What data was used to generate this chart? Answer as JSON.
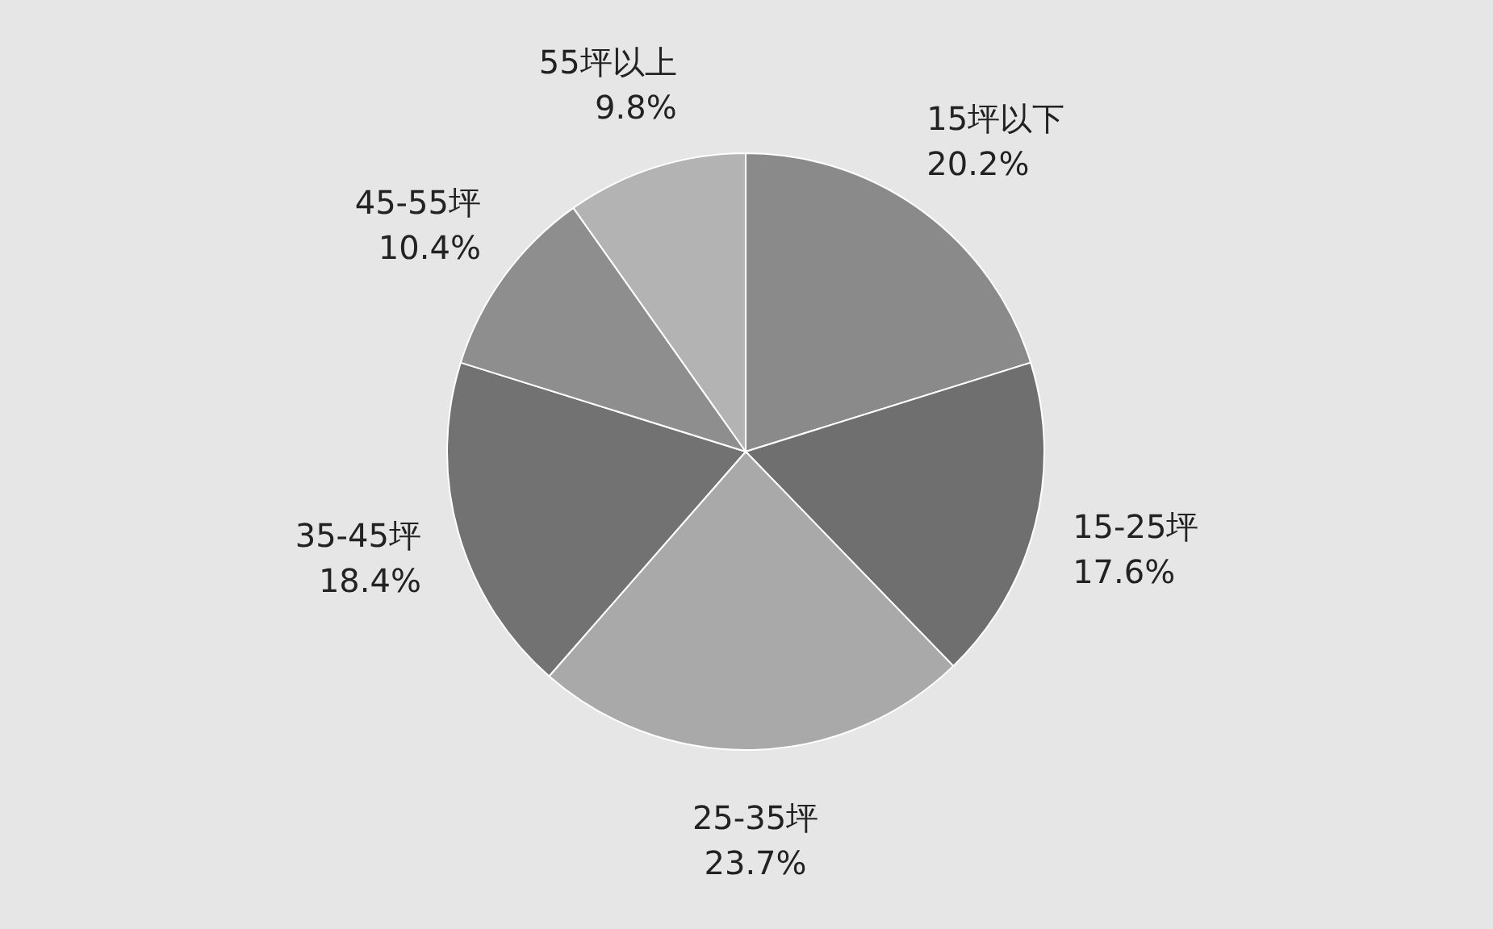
{
  "chart_data": {
    "type": "pie",
    "categories": [
      "15坪以下",
      "15-25坪",
      "25-35坪",
      "35-45坪",
      "45-55坪",
      "55坪以上"
    ],
    "values": [
      20.2,
      17.6,
      23.7,
      18.4,
      10.4,
      9.8
    ],
    "value_labels": [
      "20.2%",
      "17.6%",
      "23.7%",
      "18.4%",
      "10.4%",
      "9.8%"
    ],
    "colors": [
      "#8a8a8a",
      "#6f6f6f",
      "#a9a9a9",
      "#727272",
      "#8e8e8e",
      "#b3b3b3"
    ]
  }
}
